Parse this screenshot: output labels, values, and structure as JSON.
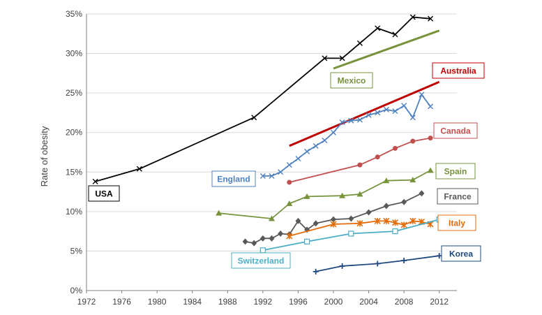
{
  "chart_data": {
    "type": "line",
    "ylabel": "Rate of obesity",
    "xlabel": "",
    "xlim": [
      1972,
      2014
    ],
    "ylim": [
      0,
      35
    ],
    "x_ticks": [
      "1972",
      "1976",
      "1980",
      "1984",
      "1988",
      "1992",
      "1996",
      "2000",
      "2004",
      "2008",
      "2012"
    ],
    "y_ticks": [
      "0%",
      "5%",
      "10%",
      "15%",
      "20%",
      "25%",
      "30%",
      "35%"
    ],
    "grid": "horizontal",
    "series": [
      {
        "name": "USA",
        "color": "#000000",
        "marker": "x",
        "x": [
          1973,
          1978,
          1991,
          1999,
          2001,
          2003,
          2005,
          2007,
          2009,
          2011
        ],
        "y": [
          13.8,
          15.4,
          21.9,
          29.4,
          29.4,
          31.3,
          33.2,
          32.4,
          34.6,
          34.4
        ]
      },
      {
        "name": "Mexico",
        "color": "#77933c",
        "marker": "none",
        "x": [
          2000,
          2012
        ],
        "y": [
          28.1,
          32.9
        ]
      },
      {
        "name": "Australia",
        "color": "#c00000",
        "marker": "none",
        "x": [
          1995,
          2012
        ],
        "y": [
          18.3,
          26.4
        ]
      },
      {
        "name": "England",
        "color": "#4f81bd",
        "marker": "x",
        "x": [
          1992,
          1993,
          1994,
          1995,
          1996,
          1997,
          1998,
          1999,
          2000,
          2001,
          2002,
          2003,
          2004,
          2005,
          2006,
          2007,
          2008,
          2009,
          2010,
          2011
        ],
        "y": [
          14.5,
          14.5,
          15.0,
          15.9,
          16.7,
          17.6,
          18.3,
          19.0,
          20.0,
          21.3,
          21.5,
          21.6,
          22.2,
          22.5,
          22.9,
          22.7,
          23.4,
          21.9,
          24.8,
          23.3
        ]
      },
      {
        "name": "Canada",
        "color": "#c0504d",
        "marker": "circle",
        "x": [
          1995,
          2003,
          2005,
          2007,
          2009,
          2011
        ],
        "y": [
          13.7,
          15.9,
          16.9,
          18.0,
          18.9,
          19.3
        ]
      },
      {
        "name": "Spain",
        "color": "#77933c",
        "marker": "triangle",
        "x": [
          1987,
          1993,
          1995,
          1997,
          2001,
          2003,
          2006,
          2009,
          2011
        ],
        "y": [
          9.8,
          9.1,
          11.0,
          11.9,
          12.0,
          12.2,
          13.9,
          14.0,
          15.2
        ]
      },
      {
        "name": "France",
        "color": "#595959",
        "marker": "diamond",
        "x": [
          1990,
          1991,
          1992,
          1993,
          1994,
          1995,
          1996,
          1997,
          1998,
          2000,
          2002,
          2004,
          2006,
          2008,
          2010
        ],
        "y": [
          6.2,
          6.0,
          6.6,
          6.6,
          7.2,
          7.1,
          8.8,
          7.7,
          8.5,
          9.0,
          9.1,
          9.9,
          10.7,
          11.2,
          12.3
        ]
      },
      {
        "name": "Italy",
        "color": "#e46c0a",
        "marker": "asterisk",
        "x": [
          1995,
          2000,
          2003,
          2005,
          2006,
          2007,
          2008,
          2009,
          2010,
          2011
        ],
        "y": [
          6.9,
          8.4,
          8.5,
          8.8,
          8.8,
          8.6,
          8.3,
          8.8,
          8.7,
          8.4
        ]
      },
      {
        "name": "Switzerland",
        "color": "#4bacc6",
        "marker": "square",
        "x": [
          1992,
          1997,
          2002,
          2007,
          2012
        ],
        "y": [
          5.1,
          6.2,
          7.2,
          7.5,
          9.0
        ]
      },
      {
        "name": "Korea",
        "color": "#1f497d",
        "marker": "plus",
        "x": [
          1998,
          2001,
          2005,
          2008,
          2012
        ],
        "y": [
          2.4,
          3.1,
          3.4,
          3.8,
          4.4
        ]
      }
    ]
  },
  "labels": [
    {
      "text": "USA",
      "series": "USA"
    },
    {
      "text": "Mexico",
      "series": "Mexico"
    },
    {
      "text": "Australia",
      "series": "Australia"
    },
    {
      "text": "England",
      "series": "England"
    },
    {
      "text": "Canada",
      "series": "Canada"
    },
    {
      "text": "Spain",
      "series": "Spain"
    },
    {
      "text": "France",
      "series": "France"
    },
    {
      "text": "Italy",
      "series": "Italy"
    },
    {
      "text": "Switzerland",
      "series": "Switzerland"
    },
    {
      "text": "Korea",
      "series": "Korea"
    }
  ]
}
